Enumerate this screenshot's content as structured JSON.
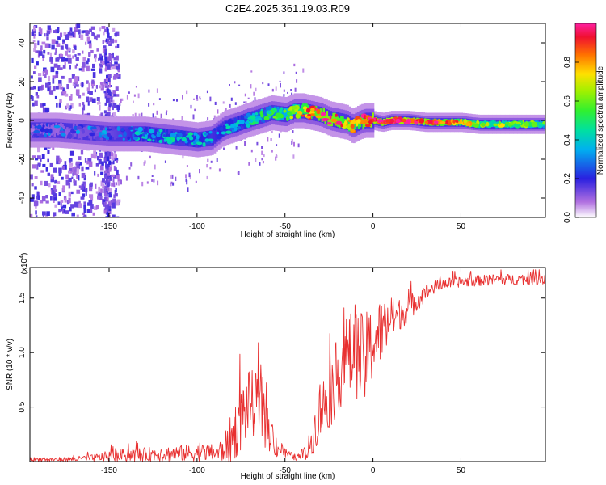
{
  "title": "C2E4.2025.361.19.03.R09",
  "chart_data": [
    {
      "type": "heatmap",
      "name": "spectrogram",
      "xlabel": "Height of straight line (km)",
      "ylabel": "Frequency (Hz)",
      "xlim": [
        -195,
        98
      ],
      "ylim": [
        -50,
        50
      ],
      "xticks": [
        -150,
        -100,
        -50,
        0,
        50
      ],
      "yticks": [
        -40,
        -20,
        0,
        20,
        40
      ],
      "ridge": {
        "x": [
          -195,
          -180,
          -165,
          -150,
          -140,
          -130,
          -120,
          -110,
          -100,
          -92,
          -85,
          -78,
          -72,
          -65,
          -58,
          -50,
          -45,
          -40,
          -35,
          -30,
          -25,
          -20,
          -15,
          -12,
          -8,
          -5,
          0,
          5,
          10,
          20,
          30,
          40,
          50,
          60,
          70,
          80,
          90,
          98
        ],
        "y": [
          -5,
          -5,
          -6,
          -7,
          -7,
          -7,
          -8,
          -9,
          -10,
          -9,
          -4,
          -2,
          0,
          2,
          4,
          3,
          5,
          5,
          4,
          3,
          1,
          0,
          -1,
          -3,
          -1,
          0,
          0,
          -1,
          0,
          0,
          -1,
          -1,
          -1,
          -2,
          -2,
          -2,
          -2,
          -2
        ],
        "amplitude": [
          0.15,
          0.15,
          0.18,
          0.2,
          0.25,
          0.3,
          0.3,
          0.32,
          0.3,
          0.25,
          0.3,
          0.3,
          0.32,
          0.38,
          0.42,
          0.5,
          0.6,
          0.75,
          0.8,
          0.85,
          0.9,
          0.82,
          0.75,
          0.7,
          0.78,
          0.88,
          0.92,
          0.9,
          0.95,
          0.92,
          0.88,
          0.82,
          0.72,
          0.65,
          0.6,
          0.55,
          0.5,
          0.45
        ]
      }
    },
    {
      "type": "colorbar",
      "label": "Normalized spectral amplitude",
      "range": [
        0,
        1
      ],
      "ticks": [
        "0.0",
        "0.2",
        "0.4",
        "0.6",
        "0.8"
      ],
      "tick_values": [
        0,
        0.2,
        0.4,
        0.6,
        0.8
      ]
    },
    {
      "type": "line",
      "name": "snr",
      "xlabel": "Height of straight line (km)",
      "ylabel": "SNR (10 * v/v)",
      "multiplier_label": "(x10",
      "multiplier_exp": "4",
      "multiplier_close": ")",
      "xlim": [
        -195,
        98
      ],
      "ylim": [
        0,
        1.78
      ],
      "xticks": [
        -150,
        -100,
        -50,
        0,
        50
      ],
      "yticks": [
        "0.5",
        "1.0",
        "1.5"
      ],
      "ytick_values": [
        0.5,
        1.0,
        1.5
      ],
      "color": "#e83030",
      "envelope": {
        "x": [
          -195,
          -175,
          -160,
          -150,
          -140,
          -120,
          -100,
          -90,
          -85,
          -80,
          -75,
          -70,
          -65,
          -60,
          -55,
          -50,
          -45,
          -42,
          -40,
          -37,
          -35,
          -33,
          -30,
          -27,
          -25,
          -22,
          -20,
          -15,
          -10,
          -5,
          0,
          5,
          10,
          15,
          20,
          25,
          30,
          35,
          40,
          50,
          60,
          70,
          80,
          90,
          98
        ],
        "mean": [
          0.02,
          0.02,
          0.03,
          0.05,
          0.06,
          0.07,
          0.08,
          0.08,
          0.1,
          0.22,
          0.4,
          0.55,
          0.5,
          0.3,
          0.15,
          0.08,
          0.04,
          0.04,
          0.05,
          0.1,
          0.2,
          0.3,
          0.45,
          0.55,
          0.6,
          0.7,
          0.8,
          0.95,
          1.0,
          0.9,
          1.1,
          1.2,
          1.3,
          1.35,
          1.4,
          1.48,
          1.55,
          1.6,
          1.63,
          1.65,
          1.66,
          1.67,
          1.67,
          1.68,
          1.68
        ],
        "noise": [
          0.02,
          0.02,
          0.03,
          0.05,
          0.06,
          0.07,
          0.08,
          0.08,
          0.12,
          0.25,
          0.3,
          0.3,
          0.3,
          0.2,
          0.12,
          0.05,
          0.03,
          0.03,
          0.05,
          0.1,
          0.15,
          0.2,
          0.25,
          0.3,
          0.3,
          0.35,
          0.35,
          0.4,
          0.4,
          0.45,
          0.35,
          0.3,
          0.2,
          0.15,
          0.12,
          0.1,
          0.08,
          0.06,
          0.05,
          0.05,
          0.05,
          0.05,
          0.05,
          0.06,
          0.06
        ]
      }
    }
  ]
}
